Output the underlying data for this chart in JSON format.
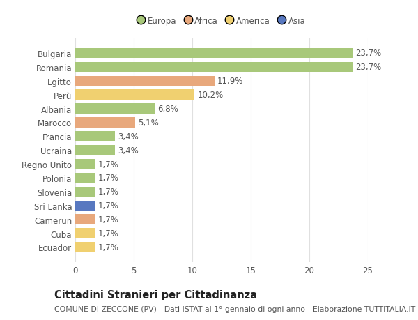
{
  "categories": [
    "Bulgaria",
    "Romania",
    "Egitto",
    "Perù",
    "Albania",
    "Marocco",
    "Francia",
    "Ucraina",
    "Regno Unito",
    "Polonia",
    "Slovenia",
    "Sri Lanka",
    "Camerun",
    "Cuba",
    "Ecuador"
  ],
  "values": [
    23.7,
    23.7,
    11.9,
    10.2,
    6.8,
    5.1,
    3.4,
    3.4,
    1.7,
    1.7,
    1.7,
    1.7,
    1.7,
    1.7,
    1.7
  ],
  "labels": [
    "23,7%",
    "23,7%",
    "11,9%",
    "10,2%",
    "6,8%",
    "5,1%",
    "3,4%",
    "3,4%",
    "1,7%",
    "1,7%",
    "1,7%",
    "1,7%",
    "1,7%",
    "1,7%",
    "1,7%"
  ],
  "colors": [
    "#a8c87a",
    "#a8c87a",
    "#e8a87c",
    "#f0d070",
    "#a8c87a",
    "#e8a87c",
    "#a8c87a",
    "#a8c87a",
    "#a8c87a",
    "#a8c87a",
    "#a8c87a",
    "#5878c0",
    "#e8a87c",
    "#f0d070",
    "#f0d070"
  ],
  "legend": [
    {
      "label": "Europa",
      "color": "#a8c87a"
    },
    {
      "label": "Africa",
      "color": "#e8a87c"
    },
    {
      "label": "America",
      "color": "#f0d070"
    },
    {
      "label": "Asia",
      "color": "#5878c0"
    }
  ],
  "title": "Cittadini Stranieri per Cittadinanza",
  "subtitle": "COMUNE DI ZECCONE (PV) - Dati ISTAT al 1° gennaio di ogni anno - Elaborazione TUTTITALIA.IT",
  "xlim": [
    0,
    25
  ],
  "xticks": [
    0,
    5,
    10,
    15,
    20,
    25
  ],
  "background_color": "#ffffff",
  "grid_color": "#e0e0e0",
  "bar_height": 0.72,
  "label_fontsize": 8.5,
  "tick_fontsize": 8.5,
  "title_fontsize": 10.5,
  "subtitle_fontsize": 7.8
}
